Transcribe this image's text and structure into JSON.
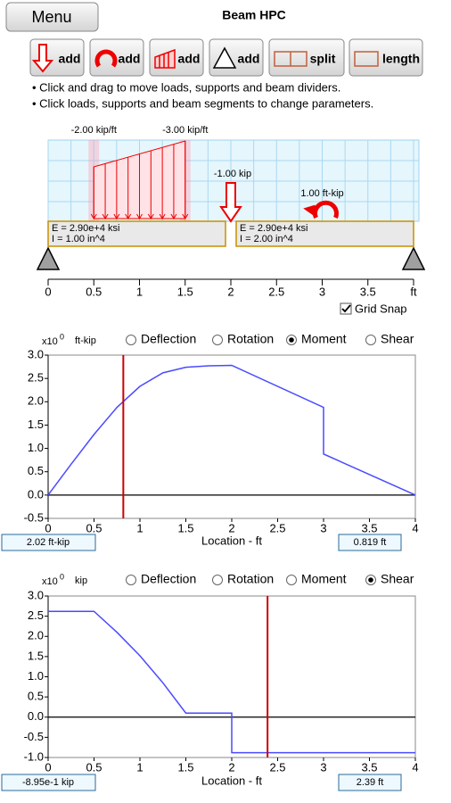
{
  "header": {
    "menu": "Menu",
    "title": "Beam HPC"
  },
  "toolbar": [
    "add",
    "add",
    "add",
    "add",
    "split",
    "length"
  ],
  "instructions": [
    "• Click and drag to move loads, supports and beam dividers.",
    "• Click loads, supports and beam segments to change parameters."
  ],
  "beam": {
    "xlim": [
      0,
      4
    ],
    "xticks": [
      0,
      0.5,
      1,
      1.5,
      2,
      2.5,
      3,
      3.5,
      {
        "value": 4,
        "label": "ft"
      }
    ],
    "distributed_load": {
      "x_start": 0.5,
      "x_end": 1.5,
      "start_value": -2,
      "end_value": -3,
      "start_label": "-2.00 kip/ft",
      "end_label": "-3.00 kip/ft"
    },
    "point_load": {
      "x": 2,
      "value": -1,
      "label": "-1.00 kip"
    },
    "moment": {
      "x": 3,
      "value": 1,
      "label": "1.00 ft-kip"
    },
    "segments": [
      {
        "x_start": 0,
        "x_end": 2,
        "E": "E = 2.90e+4 ksi",
        "I": "I = 1.00 in^4"
      },
      {
        "x_start": 2,
        "x_end": 4,
        "E": "E = 2.90e+4 ksi",
        "I": "I = 2.00 in^4"
      }
    ],
    "supports": [
      0,
      4
    ],
    "grid_snap": {
      "label": "Grid Snap",
      "checked": true
    }
  },
  "chart_data": [
    {
      "type": "line",
      "options": [
        "Deflection",
        "Rotation",
        "Moment",
        "Shear"
      ],
      "selected": 2,
      "y_unit_prefix": "x10",
      "y_unit_exponent": "0",
      "y_unit": "ft-kip",
      "xlabel": "Location - ft",
      "xlim": [
        0,
        4
      ],
      "ylim": [
        -0.5,
        3
      ],
      "xticks": [
        0,
        0.5,
        1,
        1.5,
        2,
        2.5,
        3,
        3.5,
        4
      ],
      "yticks": [
        {
          "value": 3,
          "label": "3.0"
        },
        2.5,
        {
          "value": 2,
          "label": "2.0"
        },
        1.5,
        {
          "value": 1,
          "label": "1.0"
        },
        0.5,
        {
          "value": 0,
          "label": "0.0"
        },
        -0.5
      ],
      "x": [
        0,
        0.25,
        0.5,
        0.75,
        1,
        1.25,
        1.5,
        1.75,
        2,
        3,
        3,
        4
      ],
      "values": [
        0,
        0.66,
        1.3,
        1.88,
        2.33,
        2.62,
        2.74,
        2.77,
        2.78,
        1.88,
        0.88,
        0
      ],
      "color": "#4a4aff",
      "cursor": {
        "x": 0.819,
        "location_label": "0.819 ft",
        "value_label": "2.02 ft-kip",
        "color": "#cc0000"
      }
    },
    {
      "type": "line",
      "options": [
        "Deflection",
        "Rotation",
        "Moment",
        "Shear"
      ],
      "selected": 3,
      "y_unit_prefix": "x10",
      "y_unit_exponent": "0",
      "y_unit": "kip",
      "xlabel": "Location - ft",
      "xlim": [
        0,
        4
      ],
      "ylim": [
        -1,
        3
      ],
      "xticks": [
        0,
        0.5,
        1,
        1.5,
        2,
        2.5,
        3,
        3.5,
        4
      ],
      "yticks": [
        {
          "value": 3,
          "label": "3.0"
        },
        2.5,
        {
          "value": 2,
          "label": "2.0"
        },
        1.5,
        {
          "value": 1,
          "label": "1.0"
        },
        0.5,
        {
          "value": 0,
          "label": "0.0"
        },
        -0.5,
        {
          "value": -1,
          "label": "-1.0"
        }
      ],
      "x": [
        0,
        0.5,
        0.75,
        1,
        1.25,
        1.5,
        2,
        2,
        4
      ],
      "values": [
        2.62,
        2.62,
        2.1,
        1.52,
        0.85,
        0.1,
        0.1,
        -0.88,
        -0.88
      ],
      "color": "#4a4aff",
      "cursor": {
        "x": 2.39,
        "location_label": "2.39 ft",
        "value_label": "-8.95e-1 kip",
        "color": "#cc0000"
      }
    }
  ]
}
